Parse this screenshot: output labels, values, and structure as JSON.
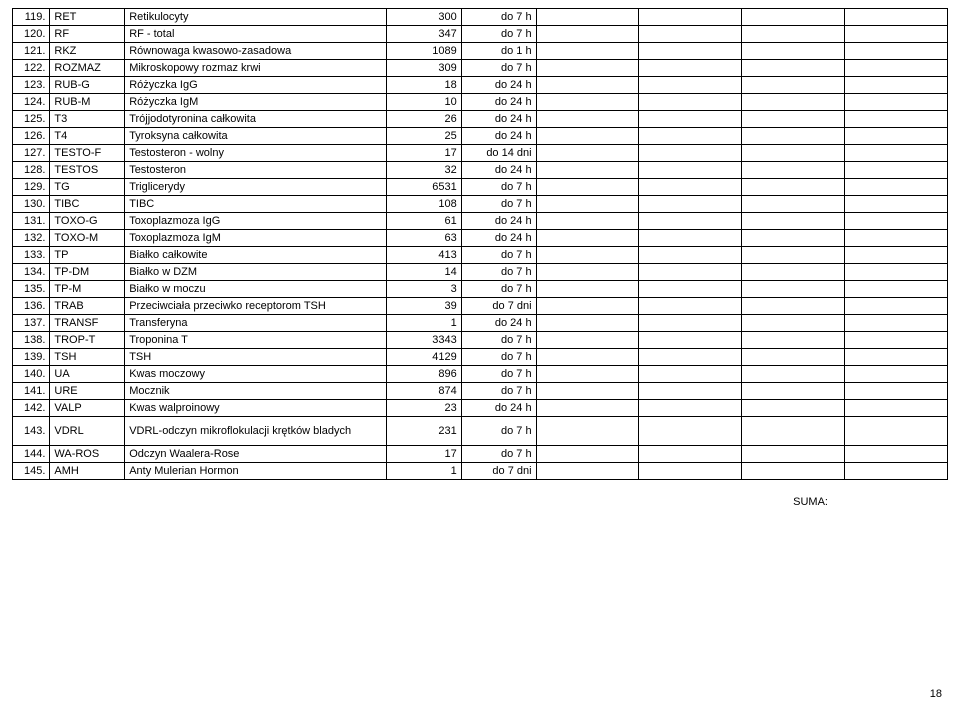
{
  "rows": [
    {
      "num": "119.",
      "code": "RET",
      "name": "Retikulocyty",
      "qty": "300",
      "time": "do 7 h"
    },
    {
      "num": "120.",
      "code": "RF",
      "name": "RF - total",
      "qty": "347",
      "time": "do 7 h"
    },
    {
      "num": "121.",
      "code": "RKZ",
      "name": "Równowaga kwasowo-zasadowa",
      "qty": "1089",
      "time": "do 1 h"
    },
    {
      "num": "122.",
      "code": "ROZMAZ",
      "name": "Mikroskopowy rozmaz krwi",
      "qty": "309",
      "time": "do 7 h"
    },
    {
      "num": "123.",
      "code": "RUB-G",
      "name": "Różyczka IgG",
      "qty": "18",
      "time": "do 24 h"
    },
    {
      "num": "124.",
      "code": "RUB-M",
      "name": "Różyczka IgM",
      "qty": "10",
      "time": "do 24 h"
    },
    {
      "num": "125.",
      "code": "T3",
      "name": "Trójjodotyronina całkowita",
      "qty": "26",
      "time": "do 24 h"
    },
    {
      "num": "126.",
      "code": "T4",
      "name": "Tyroksyna całkowita",
      "qty": "25",
      "time": "do 24 h"
    },
    {
      "num": "127.",
      "code": "TESTO-F",
      "name": "Testosteron - wolny",
      "qty": "17",
      "time": "do 14 dni"
    },
    {
      "num": "128.",
      "code": "TESTOS",
      "name": "Testosteron",
      "qty": "32",
      "time": "do 24 h"
    },
    {
      "num": "129.",
      "code": "TG",
      "name": "Triglicerydy",
      "qty": "6531",
      "time": "do 7 h"
    },
    {
      "num": "130.",
      "code": "TIBC",
      "name": "TIBC",
      "qty": "108",
      "time": "do 7 h"
    },
    {
      "num": "131.",
      "code": "TOXO-G",
      "name": "Toxoplazmoza IgG",
      "qty": "61",
      "time": "do 24 h"
    },
    {
      "num": "132.",
      "code": "TOXO-M",
      "name": "Toxoplazmoza IgM",
      "qty": "63",
      "time": "do 24 h"
    },
    {
      "num": "133.",
      "code": "TP",
      "name": "Białko całkowite",
      "qty": "413",
      "time": "do 7 h"
    },
    {
      "num": "134.",
      "code": "TP-DM",
      "name": "Białko w DZM",
      "qty": "14",
      "time": "do 7 h"
    },
    {
      "num": "135.",
      "code": "TP-M",
      "name": "Białko w moczu",
      "qty": "3",
      "time": "do 7 h"
    },
    {
      "num": "136.",
      "code": "TRAB",
      "name": "Przeciwciała przeciwko receptorom TSH",
      "qty": "39",
      "time": "do 7 dni"
    },
    {
      "num": "137.",
      "code": "TRANSF",
      "name": "Transferyna",
      "qty": "1",
      "time": "do 24 h"
    },
    {
      "num": "138.",
      "code": "TROP-T",
      "name": "Troponina T",
      "qty": "3343",
      "time": "do 7 h"
    },
    {
      "num": "139.",
      "code": "TSH",
      "name": "TSH",
      "qty": "4129",
      "time": "do 7 h"
    },
    {
      "num": "140.",
      "code": "UA",
      "name": "Kwas moczowy",
      "qty": "896",
      "time": "do 7 h"
    },
    {
      "num": "141.",
      "code": "URE",
      "name": "Mocznik",
      "qty": "874",
      "time": "do 7 h"
    },
    {
      "num": "142.",
      "code": "VALP",
      "name": "Kwas walproinowy",
      "qty": "23",
      "time": "do 24 h"
    },
    {
      "num": "143.",
      "code": "VDRL",
      "name": "VDRL-odczyn mikroflokulacji krętków bladych",
      "qty": "231",
      "time": "do 7 h",
      "tall": true
    },
    {
      "num": "144.",
      "code": "WA-ROS",
      "name": "Odczyn Waalera-Rose",
      "qty": "17",
      "time": "do 7 h"
    },
    {
      "num": "145.",
      "code": "AMH",
      "name": "Anty Mulerian Hormon",
      "qty": "1",
      "time": "do 7 dni"
    }
  ],
  "suma_label": "SUMA:",
  "page_number": "18"
}
